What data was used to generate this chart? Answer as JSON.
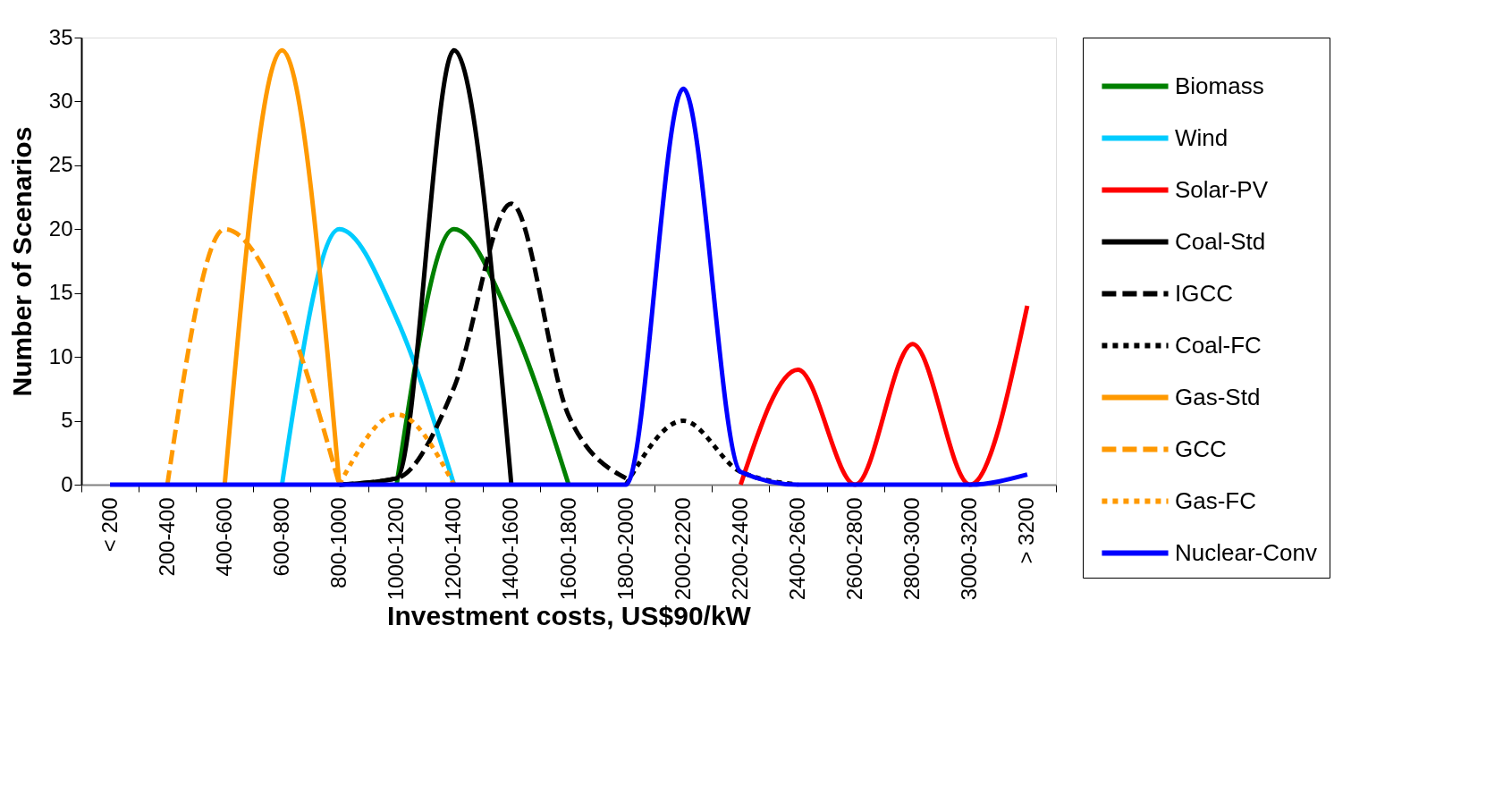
{
  "chart_data": {
    "type": "line",
    "xlabel": "Investment costs, US$90/kW",
    "ylabel": "Number of Scenarios",
    "categories": [
      "< 200",
      "200-400",
      "400-600",
      "600-800",
      "800-1000",
      "1000-1200",
      "1200-1400",
      "1400-1600",
      "1600-1800",
      "1800-2000",
      "2000-2200",
      "2200-2400",
      "2400-2600",
      "2600-2800",
      "2800-3000",
      "3000-3200",
      "> 3200"
    ],
    "ylim": [
      0,
      35
    ],
    "yticks": [
      0,
      5,
      10,
      15,
      20,
      25,
      30,
      35
    ],
    "grid": false,
    "legend": "right",
    "marker": "none",
    "series": [
      {
        "name": "Biomass",
        "color": "#008000",
        "line_style": "solid",
        "values": [
          null,
          null,
          null,
          null,
          null,
          0,
          20,
          12.8,
          0,
          null,
          null,
          null,
          null,
          null,
          null,
          null,
          null
        ]
      },
      {
        "name": "Wind",
        "color": "#00ccff",
        "line_style": "solid",
        "values": [
          null,
          null,
          null,
          0,
          20,
          13,
          0,
          null,
          null,
          null,
          null,
          null,
          null,
          null,
          null,
          null,
          null
        ]
      },
      {
        "name": "Solar-PV",
        "color": "#ff0000",
        "line_style": "solid",
        "values": [
          null,
          null,
          null,
          null,
          null,
          null,
          null,
          null,
          null,
          null,
          null,
          0,
          9,
          0,
          11,
          0,
          14
        ]
      },
      {
        "name": "Coal-Std",
        "color": "#000000",
        "line_style": "solid",
        "values": [
          null,
          null,
          null,
          null,
          0,
          0.5,
          34,
          0,
          null,
          null,
          null,
          null,
          null,
          null,
          null,
          null,
          null
        ]
      },
      {
        "name": "IGCC",
        "color": "#000000",
        "line_style": "dashed",
        "values": [
          null,
          null,
          null,
          null,
          0,
          0.5,
          7.6,
          22,
          5.4,
          0.5,
          null,
          null,
          null,
          null,
          null,
          null,
          null
        ]
      },
      {
        "name": "Coal-FC",
        "color": "#000000",
        "line_style": "dotted",
        "values": [
          null,
          null,
          null,
          null,
          null,
          null,
          null,
          null,
          null,
          0,
          5,
          1,
          0,
          null,
          null,
          null,
          null
        ]
      },
      {
        "name": "Gas-Std",
        "color": "#ff9900",
        "line_style": "solid",
        "values": [
          null,
          null,
          0,
          34,
          0,
          null,
          null,
          null,
          null,
          null,
          null,
          null,
          null,
          null,
          null,
          null,
          null
        ]
      },
      {
        "name": "GCC",
        "color": "#ff9900",
        "line_style": "dashed",
        "values": [
          null,
          0,
          20,
          14,
          0,
          null,
          null,
          null,
          null,
          null,
          null,
          null,
          null,
          null,
          null,
          null,
          null
        ]
      },
      {
        "name": "Gas-FC",
        "color": "#ff9900",
        "line_style": "dotted",
        "values": [
          null,
          null,
          null,
          null,
          0,
          5.5,
          0,
          null,
          null,
          null,
          null,
          null,
          null,
          null,
          null,
          null,
          null
        ]
      },
      {
        "name": "Nuclear-Conv",
        "color": "#0000ff",
        "line_style": "solid",
        "values": [
          0,
          0,
          0,
          0,
          0,
          0,
          0,
          0,
          0,
          0,
          31,
          1,
          0,
          0,
          0,
          0,
          0.8
        ]
      }
    ]
  }
}
